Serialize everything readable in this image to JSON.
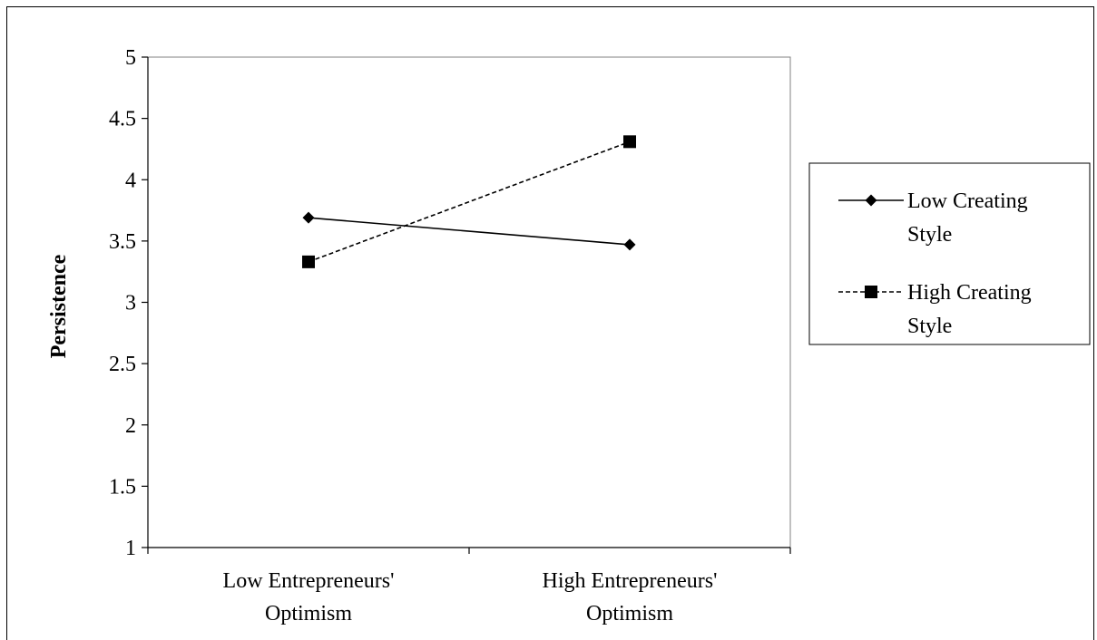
{
  "chart_data": {
    "type": "line",
    "title": "",
    "xlabel": "",
    "ylabel": "Persistence",
    "categories": [
      [
        "Low Entrepreneurs'",
        "Optimism"
      ],
      [
        "High Entrepreneurs'",
        "Optimism"
      ]
    ],
    "ylim": [
      1,
      5
    ],
    "yticks": [
      "1",
      "1.5",
      "2",
      "2.5",
      "3",
      "3.5",
      "4",
      "4.5",
      "5"
    ],
    "grid": false,
    "legend_position": "right",
    "series": [
      {
        "name": [
          "Low Creating",
          "Style"
        ],
        "values": [
          3.69,
          3.47
        ],
        "marker": "diamond",
        "line": "solid",
        "color": "#000000"
      },
      {
        "name": [
          "High Creating",
          "Style"
        ],
        "values": [
          3.33,
          4.31
        ],
        "marker": "square",
        "line": "dashed",
        "color": "#000000"
      }
    ]
  }
}
